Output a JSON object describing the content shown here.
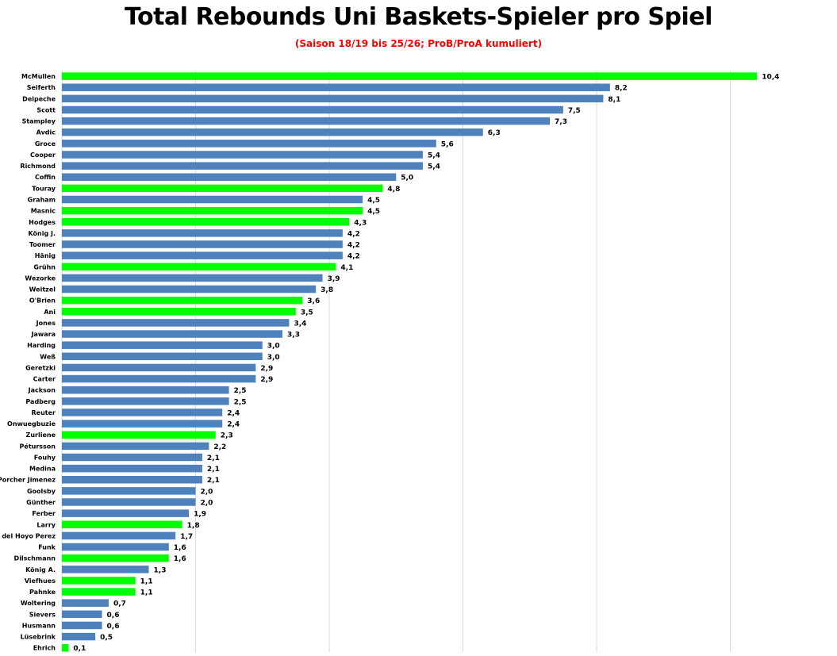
{
  "chart_data": {
    "type": "bar",
    "orientation": "horizontal",
    "title": "Total Rebounds Uni Baskets-Spieler pro Spiel",
    "subtitle": "(Saison 18/19 bis 25/26; ProB/ProA kumuliert)",
    "xlim": [
      0,
      12
    ],
    "grid": true,
    "colors": {
      "highlight": "#00ff00",
      "default": "#4f81bd",
      "grid": "#d9d9d9"
    },
    "categories": [
      "McMullen",
      "Seiferth",
      "Delpeche",
      "Scott",
      "Stampley",
      "Avdic",
      "Groce",
      "Cooper",
      "Richmond",
      "Coffin",
      "Touray",
      "Graham",
      "Masnic",
      "Hodges",
      "König J.",
      "Toomer",
      "Hänig",
      "Grühn",
      "Wezorke",
      "Weitzel",
      "O'Brien",
      "Ani",
      "Jones",
      "Jawara",
      "Harding",
      "Weß",
      "Geretzki",
      "Carter",
      "Jackson",
      "Padberg",
      "Reuter",
      "Onwuegbuzie",
      "Zurliene",
      "Pétursson",
      "Fouhy",
      "Medina",
      "Porcher Jimenez",
      "Goolsby",
      "Günther",
      "Ferber",
      "Larry",
      "del Hoyo Perez",
      "Funk",
      "Dilschmann",
      "König A.",
      "Viefhues",
      "Pahnke",
      "Woltering",
      "Sievers",
      "Husmann",
      "Lüsebrink",
      "Ehrich"
    ],
    "values": [
      10.4,
      8.2,
      8.1,
      7.5,
      7.3,
      6.3,
      5.6,
      5.4,
      5.4,
      5.0,
      4.8,
      4.5,
      4.5,
      4.3,
      4.2,
      4.2,
      4.2,
      4.1,
      3.9,
      3.8,
      3.6,
      3.5,
      3.4,
      3.3,
      3.0,
      3.0,
      2.9,
      2.9,
      2.5,
      2.5,
      2.4,
      2.4,
      2.3,
      2.2,
      2.1,
      2.1,
      2.1,
      2.0,
      2.0,
      1.9,
      1.8,
      1.7,
      1.6,
      1.6,
      1.3,
      1.1,
      1.1,
      0.7,
      0.6,
      0.6,
      0.5,
      0.1
    ],
    "value_labels": [
      "10,4",
      "8,2",
      "8,1",
      "7,5",
      "7,3",
      "6,3",
      "5,6",
      "5,4",
      "5,4",
      "5,0",
      "4,8",
      "4,5",
      "4,5",
      "4,3",
      "4,2",
      "4,2",
      "4,2",
      "4,1",
      "3,9",
      "3,8",
      "3,6",
      "3,5",
      "3,4",
      "3,3",
      "3,0",
      "3,0",
      "2,9",
      "2,9",
      "2,5",
      "2,5",
      "2,4",
      "2,4",
      "2,3",
      "2,2",
      "2,1",
      "2,1",
      "2,1",
      "2,0",
      "2,0",
      "1,9",
      "1,8",
      "1,7",
      "1,6",
      "1,6",
      "1,3",
      "1,1",
      "1,1",
      "0,7",
      "0,6",
      "0,6",
      "0,5",
      "0,1"
    ],
    "highlighted": [
      true,
      false,
      false,
      false,
      false,
      false,
      false,
      false,
      false,
      false,
      true,
      false,
      true,
      true,
      false,
      false,
      false,
      true,
      false,
      false,
      true,
      true,
      false,
      false,
      false,
      false,
      false,
      false,
      false,
      false,
      false,
      false,
      true,
      false,
      false,
      false,
      false,
      false,
      false,
      false,
      true,
      false,
      false,
      true,
      false,
      true,
      true,
      false,
      false,
      false,
      false,
      true
    ]
  }
}
